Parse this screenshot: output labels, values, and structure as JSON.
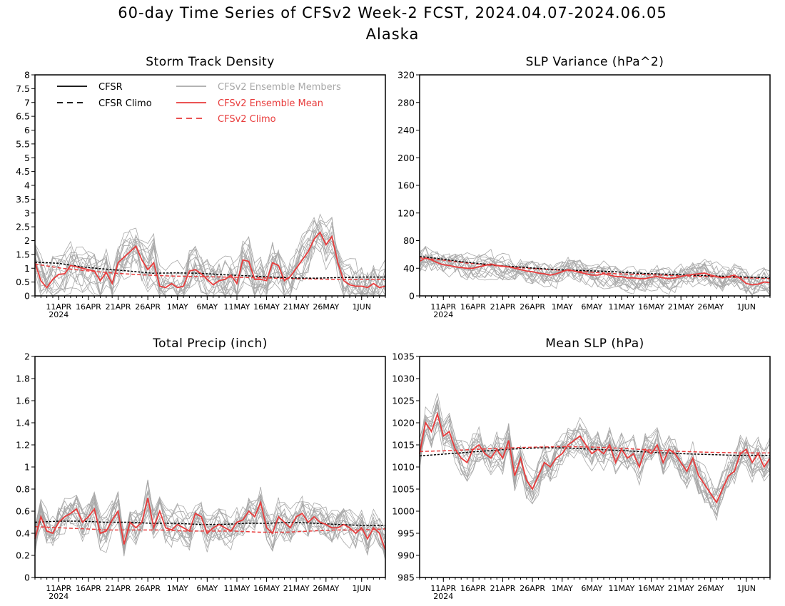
{
  "header": {
    "title": "60-day Time Series of CFSv2 Week-2 FCST, 2024.04.07-2024.06.05",
    "subtitle": "Alaska"
  },
  "colors": {
    "cfsr": "#000000",
    "members": "#a8a8a8",
    "ens_mean": "#e83c3c",
    "cfsv2_climo": "#e83c3c"
  },
  "legend": [
    {
      "label": "CFSR",
      "color": "#000000",
      "style": "solid"
    },
    {
      "label": "CFSR Climo",
      "color": "#000000",
      "style": "dashed"
    },
    {
      "label": "CFSv2 Ensemble Members",
      "color": "#a8a8a8",
      "style": "solid"
    },
    {
      "label": "CFSv2 Ensemble Mean",
      "color": "#e83c3c",
      "style": "solid"
    },
    {
      "label": "CFSv2 Climo",
      "color": "#e83c3c",
      "style": "dashed"
    }
  ],
  "x_axis": {
    "tick_labels": [
      "11APR",
      "16APR",
      "21APR",
      "26APR",
      "1MAY",
      "6MAY",
      "11MAY",
      "16MAY",
      "21MAY",
      "26MAY",
      "1JUN"
    ],
    "tick_days": [
      4,
      9,
      14,
      19,
      24,
      29,
      34,
      39,
      44,
      49,
      55
    ],
    "year_label": "2024",
    "range": [
      0,
      59
    ]
  },
  "chart_data": [
    {
      "type": "line",
      "title": "Storm Track Density",
      "ylim": [
        0,
        8
      ],
      "yticks": [
        "0",
        "0.5",
        "1",
        "1.5",
        "2",
        "2.5",
        "3",
        "3.5",
        "4",
        "4.5",
        "5",
        "5.5",
        "6",
        "6.5",
        "7",
        "7.5",
        "8"
      ],
      "legend_placement": "top-left",
      "series": [
        {
          "name": "CFSv2 Ensemble Mean",
          "values": [
            1.2,
            0.55,
            0.3,
            0.6,
            0.78,
            0.8,
            1.1,
            1.05,
            1.0,
            0.95,
            0.9,
            0.55,
            0.85,
            0.45,
            1.2,
            1.4,
            1.6,
            1.8,
            1.3,
            0.95,
            1.2,
            0.35,
            0.3,
            0.45,
            0.3,
            0.35,
            0.9,
            0.95,
            0.8,
            0.6,
            0.4,
            0.55,
            0.6,
            0.75,
            0.45,
            1.3,
            1.25,
            0.6,
            0.6,
            0.55,
            1.2,
            1.1,
            0.55,
            0.7,
            1.0,
            1.3,
            1.6,
            2.05,
            2.3,
            1.85,
            2.15,
            1.2,
            0.55,
            0.4,
            0.35,
            0.35,
            0.3,
            0.45,
            0.3,
            0.35
          ]
        },
        {
          "name": "CFSv2 Climo",
          "values": [
            1.15,
            1.0,
            0.9,
            0.82,
            0.76,
            0.72,
            0.7,
            0.68,
            0.66,
            0.64,
            0.62,
            0.6,
            0.6,
            0.6
          ]
        },
        {
          "name": "CFSR Climo",
          "values": [
            1.22,
            1.18,
            1.05,
            0.97,
            0.9,
            0.82,
            0.83,
            0.82,
            0.77,
            0.73,
            0.69,
            0.65,
            0.64,
            0.66,
            0.68,
            0.68
          ]
        },
        {
          "members_shown": true
        }
      ]
    },
    {
      "type": "line",
      "title": "SLP Variance (hPa^2)",
      "ylim": [
        0,
        320
      ],
      "yticks": [
        "0",
        "40",
        "80",
        "120",
        "160",
        "200",
        "240",
        "280",
        "320"
      ],
      "series": [
        {
          "name": "CFSv2 Ensemble Mean",
          "values": [
            50,
            55,
            52,
            48,
            45,
            44,
            42,
            41,
            40,
            40,
            42,
            44,
            46,
            44,
            43,
            42,
            40,
            38,
            36,
            35,
            33,
            32,
            30,
            32,
            35,
            38,
            36,
            34,
            32,
            30,
            30,
            32,
            30,
            28,
            28,
            26,
            26,
            25,
            25,
            27,
            28,
            26,
            25,
            26,
            28,
            30,
            31,
            32,
            33,
            30,
            28,
            26,
            28,
            30,
            25,
            18,
            16,
            17,
            20,
            19
          ]
        },
        {
          "name": "CFSv2 Climo",
          "values": [
            55,
            52,
            48,
            45,
            42,
            40,
            38,
            36,
            34,
            32,
            31,
            30,
            29,
            28,
            27,
            26,
            25
          ]
        },
        {
          "name": "CFSR Climo",
          "values": [
            57,
            54,
            50,
            47,
            44,
            42,
            40,
            38,
            37,
            36,
            35,
            33,
            32,
            31,
            30,
            29,
            28,
            27,
            26
          ]
        },
        {
          "members_shown": true
        }
      ]
    },
    {
      "type": "line",
      "title": "Total Precip (inch)",
      "ylim": [
        0,
        2
      ],
      "yticks": [
        "0",
        "0.2",
        "0.4",
        "0.6",
        "0.8",
        "1",
        "1.2",
        "1.4",
        "1.6",
        "1.8",
        "2"
      ],
      "series": [
        {
          "name": "CFSv2 Ensemble Mean",
          "values": [
            0.35,
            0.55,
            0.42,
            0.4,
            0.5,
            0.55,
            0.58,
            0.62,
            0.5,
            0.55,
            0.62,
            0.4,
            0.42,
            0.52,
            0.6,
            0.3,
            0.5,
            0.45,
            0.5,
            0.72,
            0.45,
            0.6,
            0.45,
            0.43,
            0.48,
            0.45,
            0.42,
            0.58,
            0.55,
            0.4,
            0.45,
            0.48,
            0.45,
            0.42,
            0.5,
            0.52,
            0.6,
            0.55,
            0.68,
            0.45,
            0.4,
            0.55,
            0.5,
            0.45,
            0.55,
            0.58,
            0.5,
            0.55,
            0.5,
            0.48,
            0.45,
            0.45,
            0.48,
            0.45,
            0.4,
            0.45,
            0.35,
            0.45,
            0.4,
            0.25
          ]
        },
        {
          "name": "CFSv2 Climo",
          "values": [
            0.46,
            0.45,
            0.44,
            0.43,
            0.43,
            0.43,
            0.42,
            0.42,
            0.42,
            0.41,
            0.41,
            0.42,
            0.43,
            0.43,
            0.44
          ]
        },
        {
          "name": "CFSR Climo",
          "values": [
            0.5,
            0.51,
            0.51,
            0.5,
            0.5,
            0.49,
            0.49,
            0.48,
            0.48,
            0.49,
            0.49,
            0.5,
            0.49,
            0.48,
            0.47,
            0.47
          ]
        },
        {
          "members_shown": true
        }
      ]
    },
    {
      "type": "line",
      "title": "Mean SLP (hPa)",
      "ylim": [
        985,
        1035
      ],
      "yticks": [
        "985",
        "990",
        "995",
        "1000",
        "1005",
        "1010",
        "1015",
        "1020",
        "1025",
        "1030",
        "1035"
      ],
      "series": [
        {
          "name": "CFSv2 Ensemble Mean",
          "values": [
            1013,
            1020,
            1018,
            1022,
            1017,
            1018,
            1014,
            1012,
            1011,
            1014,
            1015,
            1013,
            1012,
            1014,
            1012,
            1016,
            1008,
            1012,
            1007,
            1005,
            1008,
            1011,
            1010,
            1012,
            1013,
            1015,
            1016,
            1017,
            1015,
            1013,
            1014,
            1013,
            1015,
            1011,
            1014,
            1012,
            1013,
            1010,
            1014,
            1013,
            1015,
            1011,
            1014,
            1013,
            1011,
            1009,
            1012,
            1008,
            1006,
            1004,
            1002,
            1005,
            1008,
            1009,
            1013,
            1014,
            1011,
            1013,
            1010,
            1012
          ]
        },
        {
          "name": "CFSv2 Climo",
          "values": [
            1013.5,
            1013.7,
            1014,
            1014.3,
            1014.5,
            1014.6,
            1014.5,
            1014.2,
            1013.8,
            1013.5,
            1013.3,
            1013.2,
            1013.2
          ]
        },
        {
          "name": "CFSR Climo",
          "values": [
            1012.5,
            1013,
            1013.5,
            1014,
            1014.3,
            1014.3,
            1014,
            1013.7,
            1013.3,
            1013,
            1012.8,
            1012.6,
            1012.6
          ]
        },
        {
          "members_shown": true
        }
      ]
    }
  ]
}
